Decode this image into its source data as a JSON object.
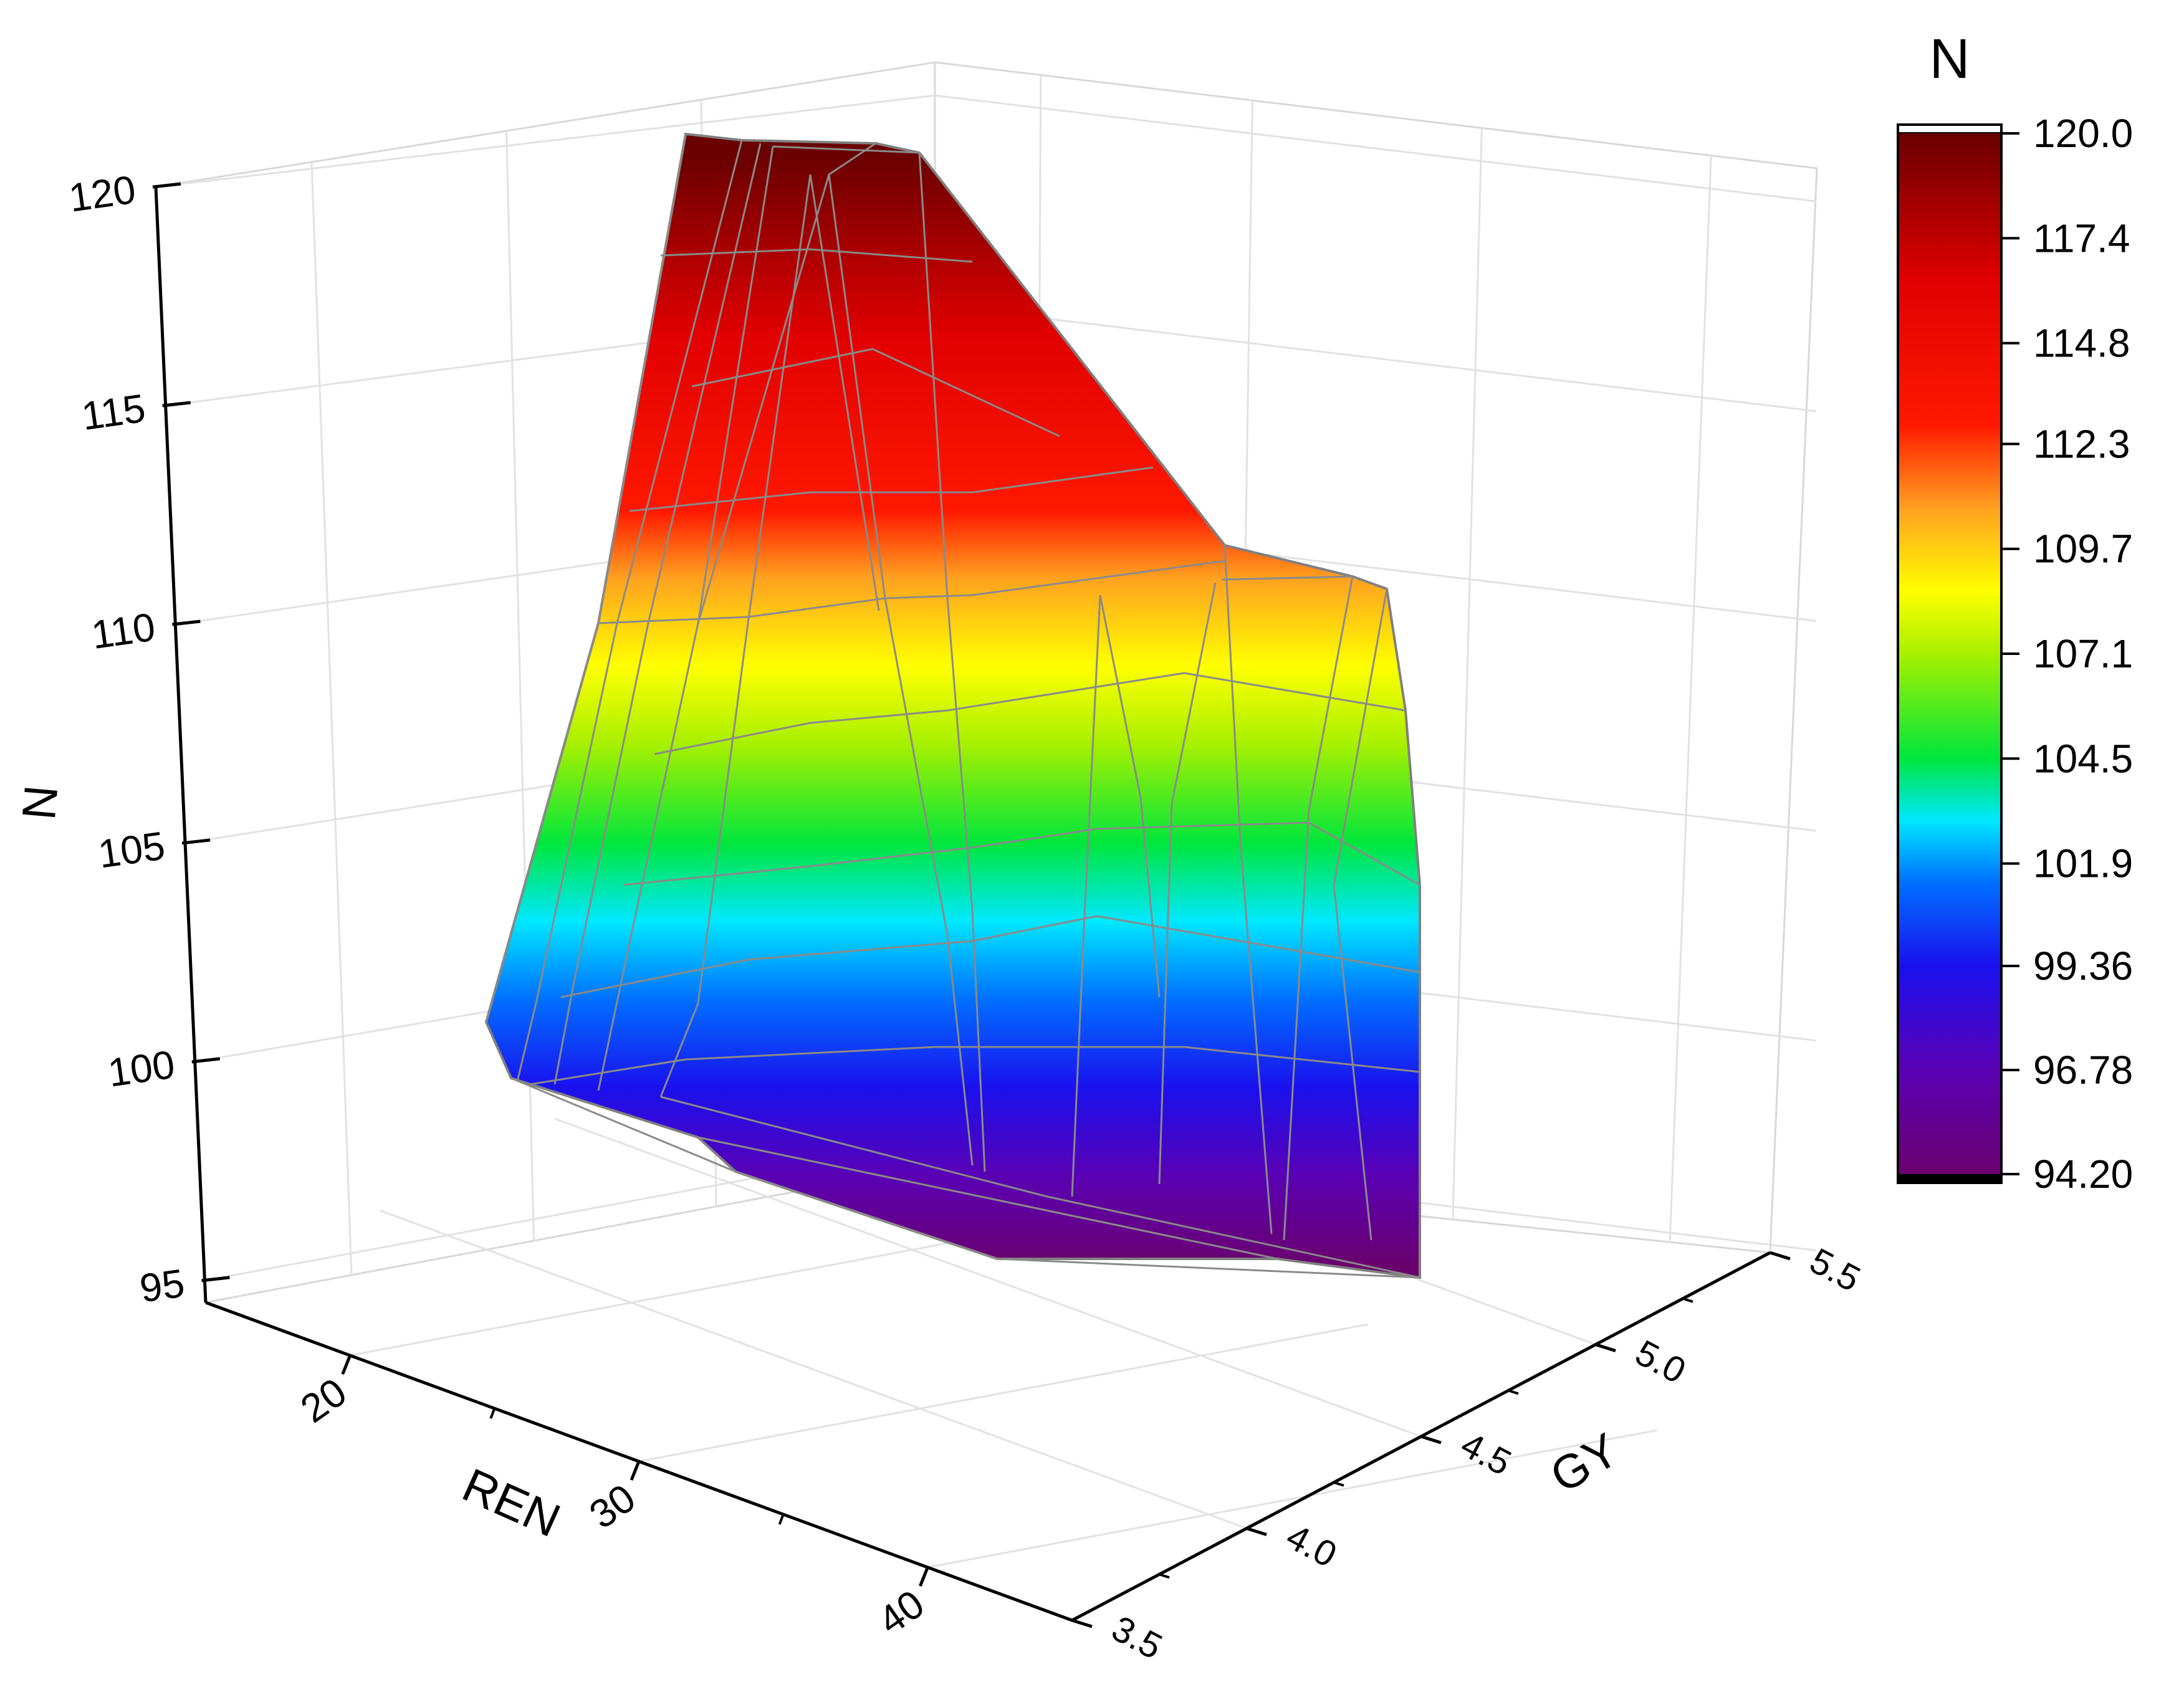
{
  "chart_data": {
    "type": "3d-surface",
    "title": "",
    "axes": {
      "x": {
        "label": "REN",
        "range": [
          15,
          45
        ],
        "ticks": [
          "20",
          "30",
          "40"
        ],
        "tick_values": [
          20,
          30,
          40
        ]
      },
      "y": {
        "label": "GY",
        "range": [
          3.5,
          5.5
        ],
        "ticks": [
          "3.5",
          "4.0",
          "4.5",
          "5.0",
          "5.5"
        ],
        "tick_values": [
          3.5,
          4.0,
          4.5,
          5.0,
          5.5
        ]
      },
      "z": {
        "label": "N",
        "range": [
          95,
          120
        ],
        "ticks": [
          "95",
          "100",
          "105",
          "110",
          "115",
          "120"
        ],
        "tick_values": [
          95,
          100,
          105,
          110,
          115,
          120
        ]
      }
    },
    "colorbar": {
      "title": "N",
      "range": [
        94.2,
        120.0
      ],
      "tick_labels": [
        "120.0",
        "117.4",
        "114.8",
        "112.3",
        "109.7",
        "107.1",
        "104.5",
        "101.9",
        "99.36",
        "96.78",
        "94.20"
      ],
      "tick_values": [
        120.0,
        117.4,
        114.8,
        112.3,
        109.7,
        107.1,
        104.5,
        101.9,
        99.36,
        96.78,
        94.2
      ],
      "colormap": [
        "#6a006e",
        "#5a00b4",
        "#1a10ee",
        "#0070ff",
        "#00e8ff",
        "#00e63c",
        "#a8f000",
        "#ffff00",
        "#ffa020",
        "#ff1800",
        "#e00000",
        "#6a0000"
      ]
    },
    "surface_estimate": {
      "note": "",
      "ren": [
        19,
        22,
        24,
        26,
        30,
        34,
        38,
        41
      ],
      "gy": [
        3.9,
        4.3,
        4.8,
        5.2
      ],
      "n": [
        [
          110.0,
          112.0,
          116.0,
          119.0
        ],
        [
          111.5,
          114.0,
          117.5,
          120.0
        ],
        [
          110.0,
          113.0,
          117.0,
          120.0
        ],
        [
          107.5,
          110.0,
          114.0,
          117.0
        ],
        [
          104.0,
          106.0,
          109.0,
          110.5
        ],
        [
          102.0,
          104.5,
          107.5,
          110.0
        ],
        [
          99.0,
          103.0,
          107.0,
          110.0
        ],
        [
          96.5,
          100.0,
          104.0,
          107.0
        ]
      ]
    },
    "grid": true,
    "legend": "colorbar-right"
  }
}
